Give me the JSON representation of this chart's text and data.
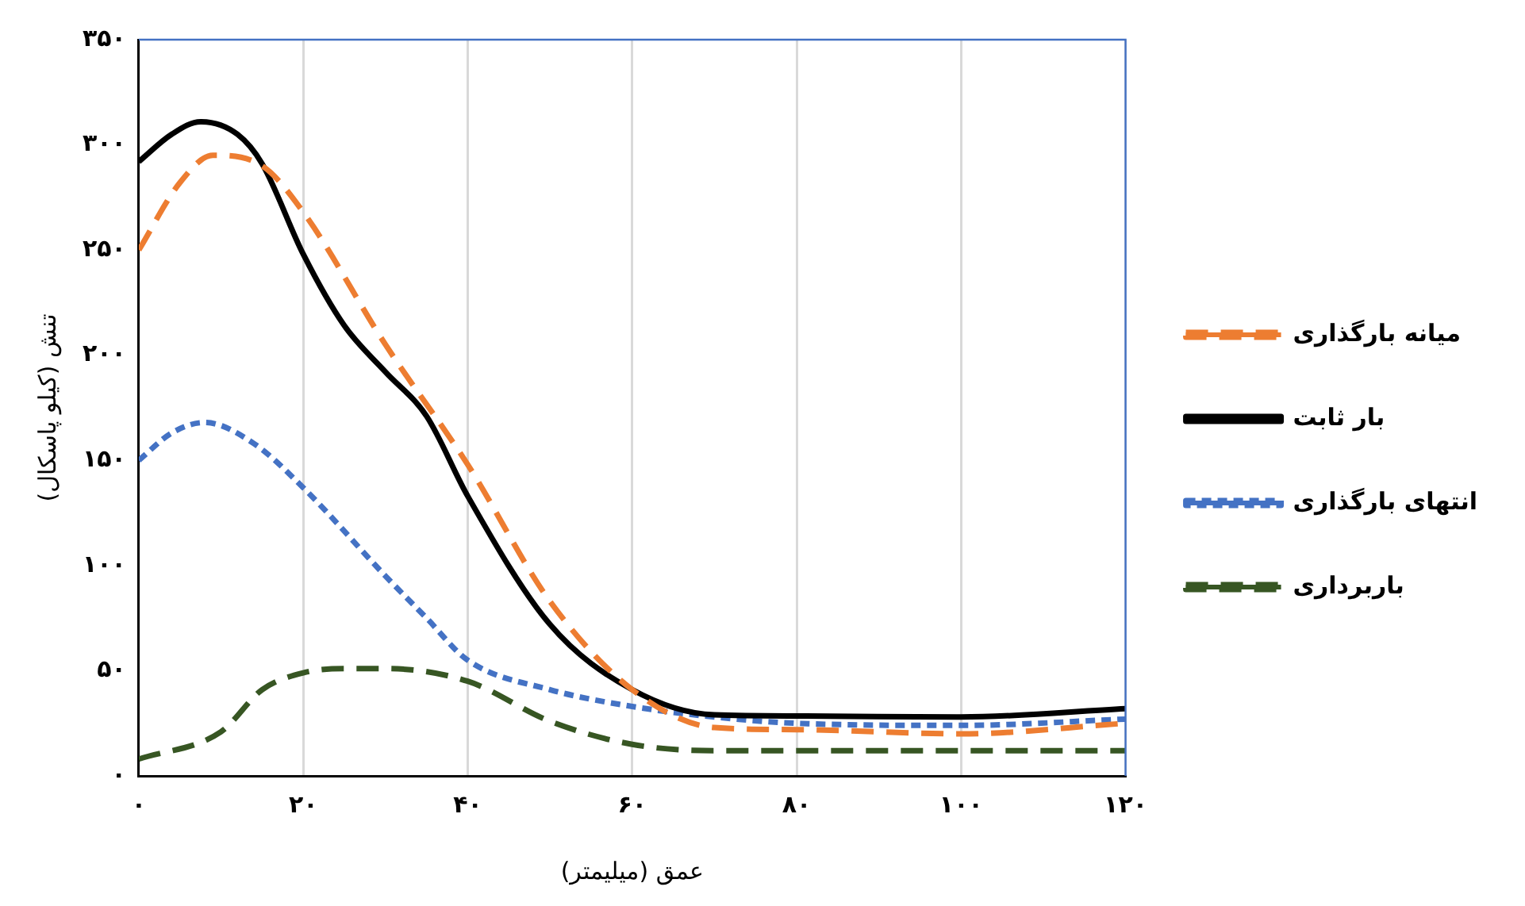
{
  "chart_data": {
    "type": "line",
    "xlabel": "عمق (میلیمتر)",
    "ylabel": "تنش (کیلو پاسکال)",
    "xlim": [
      0,
      120
    ],
    "xticks": [
      {
        "value": 0,
        "label": "۰"
      },
      {
        "value": 20,
        "label": "۲۰"
      },
      {
        "value": 40,
        "label": "۴۰"
      },
      {
        "value": 60,
        "label": "۶۰"
      },
      {
        "value": 80,
        "label": "۸۰"
      },
      {
        "value": 100,
        "label": "۱۰۰"
      },
      {
        "value": 120,
        "label": "۱۲۰"
      }
    ],
    "ylim": [
      0,
      350
    ],
    "yticks": [
      {
        "value": 0,
        "label": "۰"
      },
      {
        "value": 50,
        "label": "۵۰"
      },
      {
        "value": 100,
        "label": "۱۰۰"
      },
      {
        "value": 150,
        "label": "۱۵۰"
      },
      {
        "value": 200,
        "label": "۲۰۰"
      },
      {
        "value": 250,
        "label": "۲۵۰"
      },
      {
        "value": 300,
        "label": "۳۰۰"
      },
      {
        "value": 350,
        "label": "۳۵۰"
      }
    ],
    "grid": "x",
    "legend": "right",
    "marker": "none",
    "series": [
      {
        "name": "میانه بارگذاری",
        "color": "#ed7d31",
        "line_style": "dashed",
        "x": [
          0,
          5,
          9,
          15,
          20,
          30,
          40,
          50,
          60,
          70,
          80,
          100,
          120
        ],
        "values": [
          250,
          282,
          295,
          290,
          268,
          205,
          148,
          83,
          41,
          23,
          22,
          20,
          25
        ]
      },
      {
        "name": "بار ثابت",
        "color": "#000000",
        "line_style": "solid",
        "x": [
          0,
          4,
          7.5,
          12,
          15,
          20,
          25,
          30,
          35,
          40,
          50,
          60,
          70,
          80,
          100,
          120
        ],
        "values": [
          292,
          305,
          311,
          305,
          291,
          248,
          214,
          192,
          171,
          133,
          72,
          41,
          29,
          28.5,
          28,
          32
        ]
      },
      {
        "name": "انتهای بارگذاری",
        "color": "#4472c4",
        "line_style": "dotted",
        "x": [
          0,
          4,
          8,
          14,
          20,
          30,
          35,
          40,
          50,
          60,
          70,
          80,
          100,
          120
        ],
        "values": [
          150,
          163,
          168,
          158,
          137,
          95,
          75,
          55,
          41,
          33,
          28,
          25,
          24,
          27
        ]
      },
      {
        "name": "باربرداری",
        "color": "#375623",
        "line_style": "dashed",
        "x": [
          0,
          10,
          15,
          20,
          25,
          30,
          40,
          50,
          60,
          70,
          120
        ],
        "values": [
          8,
          21,
          41,
          49,
          51,
          51,
          45,
          26,
          15,
          12,
          12
        ]
      }
    ]
  }
}
